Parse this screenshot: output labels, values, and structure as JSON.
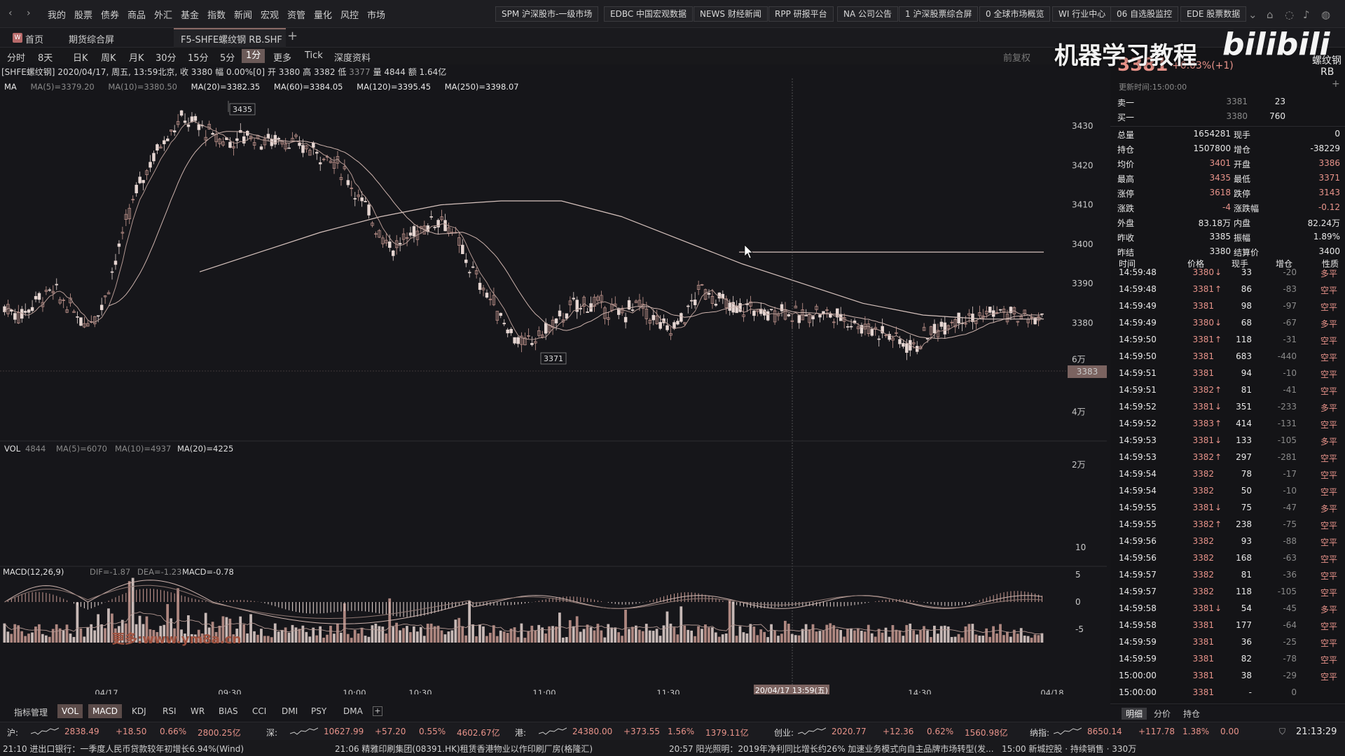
{
  "topnav": {
    "back": "‹",
    "forward": "›",
    "menu": [
      "我的",
      "股票",
      "债券",
      "商品",
      "外汇",
      "基金",
      "指数",
      "新闻",
      "宏观",
      "资管",
      "量化",
      "风控",
      "市场"
    ],
    "services": [
      "SPM 沪深股市-一级市场",
      "EDBC 中国宏观数据",
      "NEWS 财经新闻",
      "RPP 研报平台",
      "NA 公司公告",
      "1 沪深股票综合屏",
      "0 全球市场概览",
      "WI 行业中心",
      "06 自选股监控",
      "EDE 股票数据"
    ]
  },
  "tabs": {
    "home_badge": "W",
    "home": "首页",
    "futures": "期货综合屏",
    "active": "F5-SHFE螺纹钢 RB.SHF",
    "add": "+"
  },
  "periods": [
    "分时",
    "8天",
    "日K",
    "周K",
    "月K",
    "30分",
    "15分",
    "5分",
    "1分",
    "更多",
    "Tick",
    "深度资料"
  ],
  "active_period": "1分",
  "right_of_period": "前复权",
  "info": {
    "symbol": "[SHFE螺纹钢]",
    "datetime": "2020/04/17, 周五, 13:59北京",
    "close": "收 3380",
    "change": "幅 0.00%[0]",
    "open": "开 3380",
    "high": "高 3382",
    "low_label": "低",
    "low": "3377",
    "volume": "量 4844",
    "amount": "额 1.64亿"
  },
  "ma_line": {
    "label": "MA",
    "items": [
      "MA(5)=3379.20",
      "MA(10)=3380.50",
      "MA(20)=3382.35",
      "MA(60)=3384.05",
      "MA(120)=3395.45",
      "MA(250)=3398.07"
    ]
  },
  "vol_line": {
    "label": "VOL",
    "items": [
      "4844",
      "MA(5)=6070",
      "MA(10)=4937",
      "MA(20)=4225"
    ]
  },
  "macd_line": {
    "label": "MACD(12,26,9)",
    "items": [
      "DIF=-1.87",
      "DEA=-1.23",
      "MACD=-0.78"
    ]
  },
  "price_axis": [
    "3430",
    "3420",
    "3410",
    "3400",
    "3390",
    "3380"
  ],
  "price_marker": "3383",
  "high_marker": "3435",
  "low_marker": "3371",
  "vol_axis": [
    "6万",
    "4万",
    "2万"
  ],
  "macd_axis": [
    "10",
    "5",
    "0",
    "-5"
  ],
  "time_axis": [
    "04/17",
    "09:30",
    "10:00",
    "10:30",
    "11:00",
    "11:30",
    "14:30",
    "04/18"
  ],
  "crosshair_label": "20/04/17 13:59(五)",
  "macd_watermark": "更多:www.ym8a.cn",
  "indicator_tabs": [
    "指标管理",
    "VOL",
    "MACD",
    "KDJ",
    "RSI",
    "WR",
    "BIAS",
    "CCI",
    "DMI",
    "PSY",
    "DMA"
  ],
  "active_indicators": [
    "VOL",
    "MACD"
  ],
  "right_panel": {
    "title_price": "3381",
    "title_change": "+0.03%(+1)",
    "name": "螺纹钢",
    "code": "RB",
    "update_time": "更新时间:15:00:00",
    "ask": {
      "label": "卖一",
      "price": "3381",
      "qty": "23"
    },
    "bid": {
      "label": "买一",
      "price": "3380",
      "qty": "760"
    },
    "quote": [
      [
        "总量",
        "1654281",
        "现手",
        "0"
      ],
      [
        "持仓",
        "1507800",
        "增仓",
        "-38229"
      ],
      [
        "均价",
        "3401",
        "开盘",
        "3386"
      ],
      [
        "最高",
        "3435",
        "最低",
        "3371"
      ],
      [
        "涨停",
        "3618",
        "跌停",
        "3143"
      ],
      [
        "涨跌",
        "-4",
        "涨跌幅",
        "-0.12"
      ],
      [
        "外盘",
        "83.18万",
        "内盘",
        "82.24万"
      ],
      [
        "昨收",
        "3385",
        "振幅",
        "1.89%"
      ],
      [
        "昨结",
        "3380",
        "结算价",
        "3400"
      ]
    ],
    "tick_headers": [
      "时间",
      "价格",
      "现手",
      "增仓",
      "性质"
    ],
    "ticks": [
      [
        "14:59:48",
        "3380",
        "↓",
        "33",
        "-20",
        "多平"
      ],
      [
        "14:59:48",
        "3381",
        "↑",
        "86",
        "-83",
        "空平"
      ],
      [
        "14:59:49",
        "3381",
        "",
        "98",
        "-97",
        "空平"
      ],
      [
        "14:59:49",
        "3380",
        "↓",
        "68",
        "-67",
        "多平"
      ],
      [
        "14:59:50",
        "3381",
        "↑",
        "118",
        "-31",
        "空平"
      ],
      [
        "14:59:50",
        "3381",
        "",
        "683",
        "-440",
        "空平"
      ],
      [
        "14:59:51",
        "3381",
        "",
        "94",
        "-10",
        "空平"
      ],
      [
        "14:59:51",
        "3382",
        "↑",
        "81",
        "-41",
        "空平"
      ],
      [
        "14:59:52",
        "3381",
        "↓",
        "351",
        "-233",
        "多平"
      ],
      [
        "14:59:52",
        "3383",
        "↑",
        "414",
        "-131",
        "空平"
      ],
      [
        "14:59:53",
        "3381",
        "↓",
        "133",
        "-105",
        "多平"
      ],
      [
        "14:59:53",
        "3382",
        "↑",
        "297",
        "-281",
        "空平"
      ],
      [
        "14:59:54",
        "3382",
        "",
        "78",
        "-17",
        "空平"
      ],
      [
        "14:59:54",
        "3382",
        "",
        "50",
        "-10",
        "空平"
      ],
      [
        "14:59:55",
        "3381",
        "↓",
        "75",
        "-47",
        "多平"
      ],
      [
        "14:59:55",
        "3382",
        "↑",
        "238",
        "-75",
        "空平"
      ],
      [
        "14:59:56",
        "3382",
        "",
        "93",
        "-88",
        "空平"
      ],
      [
        "14:59:56",
        "3382",
        "",
        "168",
        "-63",
        "空平"
      ],
      [
        "14:59:57",
        "3382",
        "",
        "81",
        "-36",
        "空平"
      ],
      [
        "14:59:57",
        "3382",
        "",
        "118",
        "-105",
        "空平"
      ],
      [
        "14:59:58",
        "3381",
        "↓",
        "54",
        "-45",
        "多平"
      ],
      [
        "14:59:58",
        "3381",
        "",
        "177",
        "-64",
        "空平"
      ],
      [
        "14:59:59",
        "3381",
        "",
        "36",
        "-25",
        "空平"
      ],
      [
        "14:59:59",
        "3381",
        "",
        "82",
        "-78",
        "空平"
      ],
      [
        "15:00:00",
        "3381",
        "",
        "38",
        "-29",
        "空平"
      ],
      [
        "15:00:00",
        "3381",
        "",
        "-",
        "0",
        ""
      ]
    ],
    "bottom_tabs": [
      "明细",
      "分价",
      "持仓"
    ]
  },
  "index_bar": [
    {
      "name": "沪:",
      "val": "2838.49",
      "chg": "+18.50",
      "pct": "0.66%",
      "amt": "2800.25亿"
    },
    {
      "name": "深:",
      "val": "10627.99",
      "chg": "+57.20",
      "pct": "0.55%",
      "amt": "4602.67亿"
    },
    {
      "name": "港:",
      "val": "24380.00",
      "chg": "+373.55",
      "pct": "1.56%",
      "amt": "1379.11亿"
    },
    {
      "name": "创业:",
      "val": "2020.77",
      "chg": "+12.36",
      "pct": "0.62%",
      "amt": "1560.98亿"
    },
    {
      "name": "纳指:",
      "val": "8650.14",
      "chg": "+117.78",
      "pct": "1.38%",
      "amt": "0.00"
    }
  ],
  "clock": "21:13:29",
  "news": [
    "21:10 进出口银行：一季度人民币贷款较年初增长6.94%(Wind)",
    "21:06 精雅印刷集团(08391.HK)租赁香港物业以作印刷厂房(格隆汇)",
    "20:57 阳光照明：2019年净利同比增长约26% 加速业务模式向自主品牌市场转型(发...",
    "15:00 新城控股 · 持续销售 · 330万"
  ],
  "watermark": {
    "text": "机器学习教程",
    "brand": "bilibili"
  },
  "chart_data": {
    "type": "line",
    "title": "",
    "xlabel": "",
    "ylabel": "",
    "ylim": [
      3371,
      3435
    ],
    "x_ticks": [
      "04/17",
      "09:30",
      "10:00",
      "10:30",
      "11:00",
      "11:30",
      "14:30",
      "04/18"
    ],
    "series": [
      {
        "name": "MA(120)",
        "values": [
          3393,
          3398,
          3403,
          3407,
          3410,
          3411,
          3411,
          3407,
          3401,
          3395,
          3390,
          3385,
          3382,
          3381,
          3381
        ]
      },
      {
        "name": "MA(250)",
        "values": [
          3398,
          3398,
          3398,
          3398,
          3398,
          3398
        ]
      }
    ],
    "close_approx": [
      3384,
      3382,
      3386,
      3388,
      3384,
      3380,
      3384,
      3398,
      3412,
      3421,
      3428,
      3432,
      3430,
      3427,
      3426,
      3428,
      3426,
      3427,
      3425,
      3424,
      3422,
      3418,
      3411,
      3404,
      3399,
      3402,
      3405,
      3407,
      3400,
      3392,
      3386,
      3379,
      3374,
      3377,
      3380,
      3384,
      3385,
      3384,
      3382,
      3385,
      3381,
      3378,
      3382,
      3389,
      3386,
      3383,
      3384,
      3382,
      3384,
      3381,
      3383,
      3382,
      3381,
      3379,
      3378,
      3376,
      3374,
      3377,
      3380,
      3382,
      3381,
      3383,
      3382,
      3381,
      3381
    ],
    "volume_axis": [
      "2万",
      "4万",
      "6万"
    ],
    "macd_axis": [
      -5,
      0,
      5,
      10
    ]
  }
}
